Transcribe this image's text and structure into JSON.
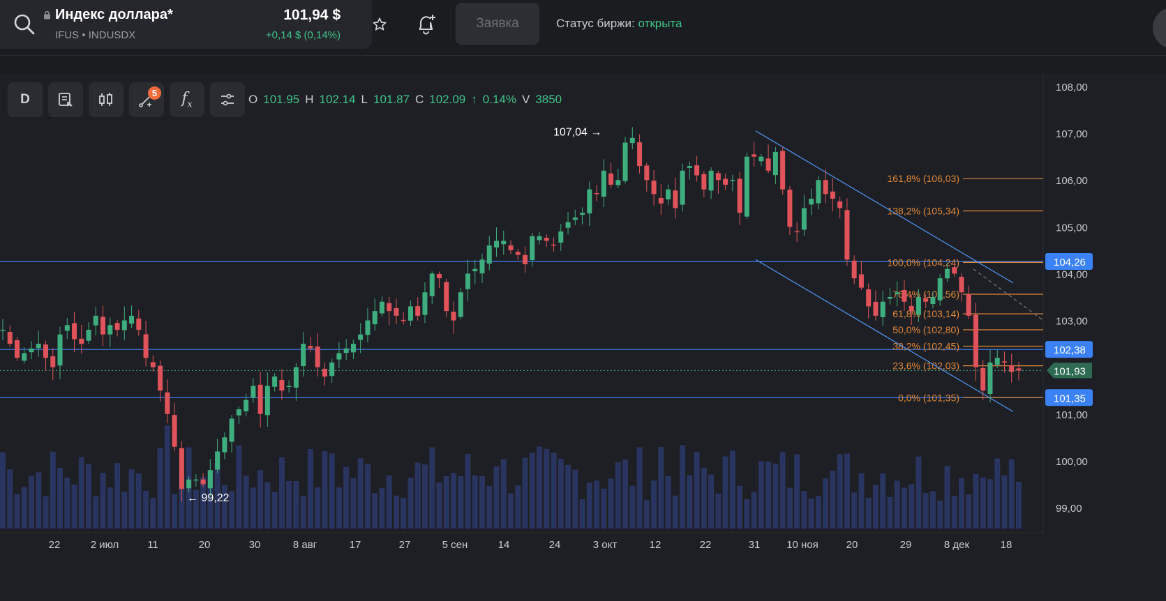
{
  "header": {
    "ticker_name": "Индекс доллара*",
    "ticker_code": "IFUS • INDUSDX",
    "price": "101,94 $",
    "change": "+0,14 $ (0,14%)",
    "order_label": "Заявка",
    "status_label": "Статус биржи:",
    "status_value": "открыта",
    "icons": [
      "search-icon",
      "lock-icon",
      "star-icon",
      "bell-plus-icon"
    ]
  },
  "toolbar": {
    "interval": "D",
    "drawings_badge": "5",
    "icons": [
      "notes-icon",
      "candles-icon",
      "drawings-icon",
      "indicators-icon",
      "settings-icon"
    ]
  },
  "ohlc": {
    "o_label": "O",
    "o": "101.95",
    "h_label": "H",
    "h": "102.14",
    "l_label": "L",
    "l": "101.87",
    "c_label": "C",
    "c": "102.09",
    "chg_arrow": "↑",
    "chg": "0.14%",
    "v_label": "V",
    "v": "3850"
  },
  "chart_data": {
    "type": "candlestick",
    "y_ticks": [
      "108,00",
      "107,00",
      "106,00",
      "105,00",
      "104,00",
      "103,00",
      "101,00",
      "100,00",
      "99,00"
    ],
    "ylim": [
      98.6,
      108.3
    ],
    "x_ticks": [
      "22",
      "2 июл",
      "11",
      "20",
      "30",
      "8 авг",
      "17",
      "27",
      "5 сен",
      "14",
      "24",
      "3 окт",
      "12",
      "22",
      "31",
      "10 ноя",
      "20",
      "29",
      "8 дек",
      "18"
    ],
    "annotations": {
      "high_label": "107,04 →",
      "low_label": "← 99,22"
    },
    "price_tags": [
      {
        "text": "104,26",
        "value": 104.26,
        "color": "#3b82f6"
      },
      {
        "text": "102,38",
        "value": 102.38,
        "color": "#3b82f6"
      },
      {
        "text": "101,93",
        "value": 101.93,
        "color": "#3fae7f"
      },
      {
        "text": "101,35",
        "value": 101.35,
        "color": "#3b82f6"
      }
    ],
    "fibonacci": [
      {
        "label": "161,8% (106,03)",
        "value": 106.03
      },
      {
        "label": "138,2% (105,34)",
        "value": 105.34
      },
      {
        "label": "100,0% (104,24)",
        "value": 104.24
      },
      {
        "label": "76,4% (103,56)",
        "value": 103.56
      },
      {
        "label": "61,8% (103,14)",
        "value": 103.14
      },
      {
        "label": "50,0% (102,80)",
        "value": 102.8
      },
      {
        "label": "38,2% (102,45)",
        "value": 102.45
      },
      {
        "label": "23,6% (102,03)",
        "value": 102.03
      },
      {
        "label": "0,0% (101,35)",
        "value": 101.35
      }
    ],
    "closes": [
      102.8,
      102.5,
      102.2,
      102.3,
      102.4,
      102.5,
      102.2,
      102.0,
      102.7,
      102.9,
      102.6,
      102.5,
      102.8,
      103.1,
      102.7,
      102.9,
      102.8,
      103.0,
      103.1,
      102.8,
      102.2,
      102.0,
      101.5,
      101.0,
      100.3,
      99.4,
      99.6,
      99.6,
      99.5,
      99.8,
      100.2,
      100.5,
      100.9,
      101.1,
      101.3,
      101.6,
      101.0,
      101.6,
      101.8,
      101.5,
      101.6,
      102.0,
      102.5,
      102.4,
      102.0,
      101.8,
      102.1,
      102.3,
      102.4,
      102.5,
      102.7,
      103.0,
      103.2,
      103.4,
      103.2,
      103.1,
      103.0,
      103.3,
      103.1,
      103.6,
      104.0,
      103.9,
      103.2,
      103.0,
      103.6,
      104.0,
      104.1,
      104.3,
      104.6,
      104.7,
      104.7,
      104.5,
      104.4,
      104.2,
      104.8,
      104.8,
      104.7,
      104.6,
      104.9,
      105.1,
      105.2,
      105.3,
      105.8,
      105.7,
      106.2,
      105.9,
      106.0,
      106.8,
      106.9,
      106.3,
      106.0,
      105.7,
      105.5,
      105.8,
      105.4,
      106.2,
      106.3,
      106.1,
      105.8,
      106.2,
      106.0,
      105.9,
      106.0,
      105.3,
      106.5,
      106.5,
      106.5,
      106.2,
      106.6,
      105.8,
      105.0,
      104.9,
      105.4,
      105.6,
      106.0,
      105.7,
      105.6,
      105.4,
      104.3,
      103.9,
      103.7,
      103.3,
      103.1,
      103.4,
      103.5,
      103.6,
      103.4,
      103.2,
      103.5,
      103.4,
      103.5,
      103.9,
      104.1,
      104.0,
      103.6,
      103.1,
      102.0,
      101.5,
      102.1,
      102.2,
      102.1,
      101.9,
      101.93
    ],
    "volume_max": 100
  }
}
